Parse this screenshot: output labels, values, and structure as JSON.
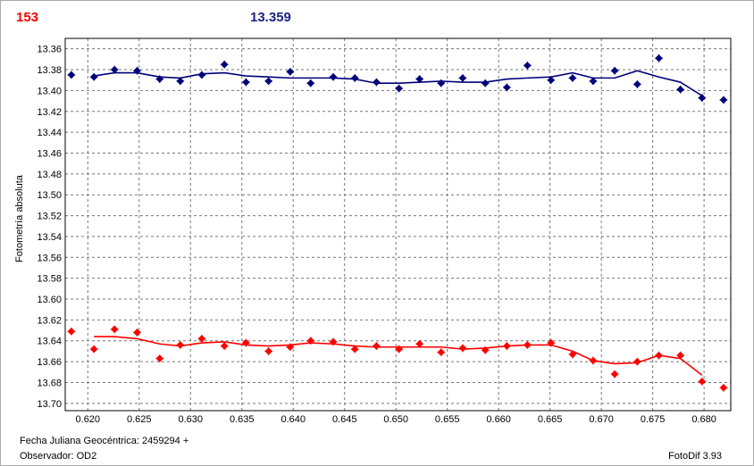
{
  "header": {
    "left": "153",
    "right": "13.359"
  },
  "footer": {
    "date": "Fecha Juliana Geocéntrica: 2459294 +",
    "observer": "Observador: OD2",
    "version": "FotoDif 3.93"
  },
  "chart_data": {
    "type": "scatter",
    "ylabel": "Fotometría absoluta",
    "xlim": [
      0.6178,
      0.6826
    ],
    "ylim": [
      13.35,
      13.707
    ],
    "y_inverted": true,
    "grid": true,
    "xticks": [
      {
        "value": 0.62,
        "label": "0.620"
      },
      0.625,
      {
        "value": 0.63,
        "label": "0.630"
      },
      0.635,
      {
        "value": 0.64,
        "label": "0.640"
      },
      0.645,
      {
        "value": 0.65,
        "label": "0.650"
      },
      0.655,
      {
        "value": 0.66,
        "label": "0.660"
      },
      0.665,
      {
        "value": 0.67,
        "label": "0.670"
      },
      0.675,
      {
        "value": 0.68,
        "label": "0.680"
      }
    ],
    "yticks": [
      13.36,
      13.38,
      {
        "value": 13.4,
        "label": "13.40"
      },
      13.42,
      13.44,
      13.46,
      13.48,
      {
        "value": 13.5,
        "label": "13.50"
      },
      13.52,
      13.54,
      13.56,
      13.58,
      {
        "value": 13.6,
        "label": "13.60"
      },
      13.62,
      13.64,
      13.66,
      13.68,
      {
        "value": 13.7,
        "label": "13.70"
      }
    ],
    "x": [
      0.6184,
      0.6206,
      0.6226,
      0.6248,
      0.627,
      0.629,
      0.6311,
      0.6333,
      0.6354,
      0.6376,
      0.6397,
      0.6417,
      0.6439,
      0.646,
      0.6481,
      0.6503,
      0.6523,
      0.6544,
      0.6565,
      0.6587,
      0.6608,
      0.6628,
      0.6651,
      0.6672,
      0.6692,
      0.6713,
      0.6735,
      0.6756,
      0.6777,
      0.6798,
      0.6819
    ],
    "series": [
      {
        "type": "scatter",
        "color": "#00007a",
        "values": [
          13.385,
          13.387,
          13.38,
          13.381,
          13.389,
          13.391,
          13.385,
          13.375,
          13.392,
          13.391,
          13.382,
          13.393,
          13.387,
          13.388,
          13.392,
          13.398,
          13.389,
          13.393,
          13.388,
          13.393,
          13.397,
          13.376,
          13.39,
          13.388,
          13.391,
          13.381,
          13.394,
          13.369,
          13.399,
          13.407,
          13.409
        ]
      },
      {
        "type": "scatter",
        "color": "#ff0000",
        "values": [
          13.631,
          13.648,
          13.629,
          13.632,
          13.657,
          13.644,
          13.638,
          13.645,
          13.642,
          13.65,
          13.646,
          13.64,
          13.641,
          13.648,
          13.645,
          13.648,
          13.643,
          13.651,
          13.647,
          13.649,
          13.645,
          13.644,
          13.642,
          13.653,
          13.659,
          13.672,
          13.66,
          13.654,
          13.654,
          13.679,
          13.685
        ]
      },
      {
        "type": "line",
        "color": "#00007a",
        "values": [
          null,
          13.386,
          13.383,
          13.383,
          13.387,
          13.388,
          13.384,
          13.383,
          13.386,
          13.387,
          13.388,
          13.388,
          13.388,
          13.389,
          13.393,
          13.393,
          13.392,
          13.391,
          13.392,
          13.392,
          13.389,
          13.388,
          13.387,
          13.383,
          13.388,
          13.388,
          13.381,
          13.387,
          13.392,
          13.405,
          null
        ]
      },
      {
        "type": "line",
        "color": "#ff0000",
        "values": [
          null,
          13.636,
          13.636,
          13.638,
          13.643,
          13.645,
          13.642,
          13.641,
          13.644,
          13.645,
          13.644,
          13.642,
          13.643,
          13.645,
          13.646,
          13.646,
          13.646,
          13.646,
          13.648,
          13.647,
          13.645,
          13.644,
          13.644,
          13.65,
          13.659,
          13.662,
          13.661,
          13.654,
          13.657,
          13.673,
          null
        ]
      }
    ]
  }
}
